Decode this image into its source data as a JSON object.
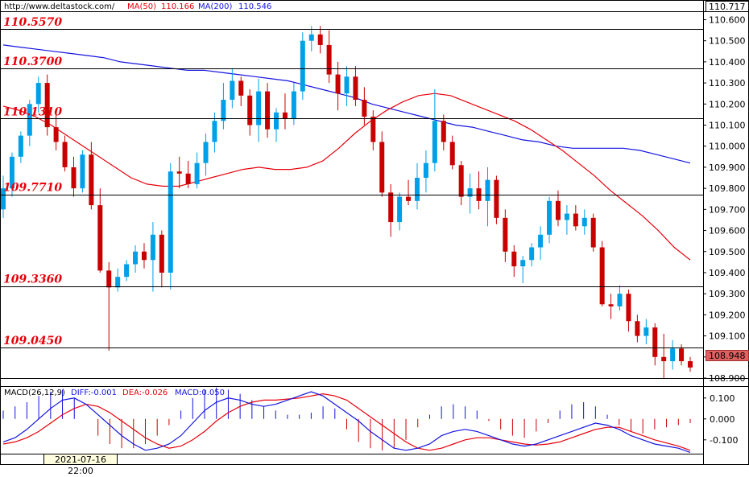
{
  "header": {
    "site": "http://www.deltastock.com/",
    "ma50_label": "MA(50)",
    "ma50_value": "110.166",
    "ma200_label": "MA(200)",
    "ma200_value": "110.546"
  },
  "macd_header": {
    "title": "MACD(26,12,9)",
    "diff": "DIFF:-0.001",
    "dea": "DEA:-0.026",
    "macd": "MACD:0.050"
  },
  "top_price": "110.717",
  "last_price": "108.948",
  "date_label": "2021-07-16 22:00",
  "colors": {
    "up": "#00a0e8",
    "down": "#c80000",
    "ma50": "#e8000b",
    "ma200": "#1414e0",
    "level_text": "#e8000b",
    "last_price_bg": "#e06060"
  },
  "chart_data": {
    "type": "candlestick",
    "ylim": [
      108.9,
      110.64
    ],
    "y_ticks": [
      "110.600",
      "110.500",
      "110.400",
      "110.300",
      "110.200",
      "110.100",
      "110.000",
      "109.900",
      "109.800",
      "109.700",
      "109.600",
      "109.500",
      "109.400",
      "109.300",
      "109.200",
      "109.100",
      "109.000",
      "108.900"
    ],
    "levels": [
      "110.5570",
      "110.3700",
      "110.1310",
      "109.7710",
      "109.3360",
      "109.0450"
    ],
    "series": [
      {
        "name": "MA(50)",
        "values": [
          110.19,
          110.17,
          110.14,
          110.1,
          110.05,
          110.0,
          109.95,
          109.9,
          109.85,
          109.82,
          109.81,
          109.81,
          109.83,
          109.85,
          109.87,
          109.89,
          109.9,
          109.89,
          109.89,
          109.9,
          109.93,
          109.99,
          110.06,
          110.12,
          110.17,
          110.21,
          110.24,
          110.25,
          110.24,
          110.21,
          110.18,
          110.15,
          110.12,
          110.08,
          110.03,
          109.98,
          109.92,
          109.86,
          109.79,
          109.73,
          109.67,
          109.6,
          109.52,
          109.46
        ]
      },
      {
        "name": "MA(200)",
        "values": [
          110.48,
          110.47,
          110.46,
          110.45,
          110.44,
          110.43,
          110.42,
          110.4,
          110.39,
          110.38,
          110.37,
          110.36,
          110.36,
          110.35,
          110.34,
          110.33,
          110.32,
          110.31,
          110.29,
          110.27,
          110.25,
          110.23,
          110.2,
          110.18,
          110.16,
          110.14,
          110.12,
          110.1,
          110.09,
          110.07,
          110.05,
          110.03,
          110.02,
          110.0,
          109.99,
          109.99,
          109.99,
          109.99,
          109.98,
          109.96,
          109.94,
          109.92
        ]
      },
      {
        "name": "candles",
        "ohlc": [
          [
            109.7,
            109.86,
            109.66,
            109.8
          ],
          [
            109.8,
            109.97,
            109.76,
            109.95
          ],
          [
            109.95,
            110.07,
            109.92,
            110.05
          ],
          [
            110.05,
            110.22,
            110.0,
            110.2
          ],
          [
            110.2,
            110.33,
            110.16,
            110.3
          ],
          [
            110.3,
            110.34,
            110.05,
            110.09
          ],
          [
            110.09,
            110.18,
            109.98,
            110.02
          ],
          [
            110.02,
            110.05,
            109.88,
            109.9
          ],
          [
            109.9,
            109.95,
            109.76,
            109.8
          ],
          [
            109.8,
            109.98,
            109.78,
            109.96
          ],
          [
            109.96,
            110.02,
            109.7,
            109.72
          ],
          [
            109.72,
            109.8,
            109.4,
            109.41
          ],
          [
            109.41,
            109.45,
            109.03,
            109.33
          ],
          [
            109.33,
            109.42,
            109.31,
            109.38
          ],
          [
            109.38,
            109.46,
            109.36,
            109.44
          ],
          [
            109.44,
            109.53,
            109.4,
            109.5
          ],
          [
            109.5,
            109.54,
            109.42,
            109.46
          ],
          [
            109.46,
            109.64,
            109.31,
            109.58
          ],
          [
            109.58,
            109.6,
            109.33,
            109.4
          ],
          [
            109.4,
            109.92,
            109.32,
            109.88
          ],
          [
            109.88,
            109.95,
            109.8,
            109.87
          ],
          [
            109.87,
            109.93,
            109.8,
            109.82
          ],
          [
            109.82,
            109.97,
            109.8,
            109.92
          ],
          [
            109.92,
            110.06,
            109.86,
            110.02
          ],
          [
            110.02,
            110.16,
            109.97,
            110.12
          ],
          [
            110.12,
            110.3,
            110.08,
            110.22
          ],
          [
            110.22,
            110.37,
            110.18,
            110.31
          ],
          [
            110.31,
            110.33,
            110.19,
            110.24
          ],
          [
            110.24,
            110.27,
            110.05,
            110.1
          ],
          [
            110.1,
            110.32,
            110.02,
            110.26
          ],
          [
            110.26,
            110.3,
            110.04,
            110.08
          ],
          [
            110.08,
            110.18,
            110.02,
            110.16
          ],
          [
            110.16,
            110.25,
            110.08,
            110.13
          ],
          [
            110.13,
            110.3,
            110.1,
            110.26
          ],
          [
            110.26,
            110.54,
            110.22,
            110.5
          ],
          [
            110.5,
            110.57,
            110.45,
            110.53
          ],
          [
            110.53,
            110.57,
            110.44,
            110.48
          ],
          [
            110.48,
            110.55,
            110.3,
            110.34
          ],
          [
            110.34,
            110.4,
            110.17,
            110.25
          ],
          [
            110.25,
            110.38,
            110.19,
            110.33
          ],
          [
            110.33,
            110.38,
            110.19,
            110.22
          ],
          [
            110.22,
            110.28,
            110.1,
            110.14
          ],
          [
            110.14,
            110.17,
            109.98,
            110.02
          ],
          [
            110.02,
            110.07,
            109.76,
            109.78
          ],
          [
            109.78,
            109.82,
            109.57,
            109.64
          ],
          [
            109.64,
            109.78,
            109.6,
            109.76
          ],
          [
            109.76,
            109.84,
            109.72,
            109.74
          ],
          [
            109.74,
            109.92,
            109.7,
            109.85
          ],
          [
            109.85,
            109.98,
            109.78,
            109.92
          ],
          [
            109.92,
            110.27,
            109.88,
            110.12
          ],
          [
            110.12,
            110.15,
            109.98,
            110.02
          ],
          [
            110.02,
            110.05,
            109.89,
            109.91
          ],
          [
            109.91,
            109.93,
            109.72,
            109.76
          ],
          [
            109.76,
            109.87,
            109.68,
            109.8
          ],
          [
            109.8,
            109.88,
            109.7,
            109.74
          ],
          [
            109.74,
            109.9,
            109.62,
            109.84
          ],
          [
            109.84,
            109.86,
            109.63,
            109.66
          ],
          [
            109.66,
            109.7,
            109.45,
            109.5
          ],
          [
            109.5,
            109.53,
            109.38,
            109.43
          ],
          [
            109.43,
            109.48,
            109.35,
            109.46
          ],
          [
            109.46,
            109.54,
            109.43,
            109.52
          ],
          [
            109.52,
            109.62,
            109.46,
            109.58
          ],
          [
            109.58,
            109.76,
            109.54,
            109.74
          ],
          [
            109.74,
            109.79,
            109.62,
            109.65
          ],
          [
            109.65,
            109.72,
            109.58,
            109.68
          ],
          [
            109.68,
            109.72,
            109.6,
            109.62
          ],
          [
            109.62,
            109.7,
            109.58,
            109.66
          ],
          [
            109.66,
            109.68,
            109.5,
            109.52
          ],
          [
            109.52,
            109.55,
            109.24,
            109.25
          ],
          [
            109.25,
            109.3,
            109.18,
            109.24
          ],
          [
            109.24,
            109.34,
            109.22,
            109.3
          ],
          [
            109.3,
            109.32,
            109.12,
            109.17
          ],
          [
            109.17,
            109.2,
            109.07,
            109.1
          ],
          [
            109.1,
            109.18,
            109.06,
            109.14
          ],
          [
            109.14,
            109.16,
            108.96,
            109.0
          ],
          [
            109.0,
            109.11,
            108.9,
            108.98
          ],
          [
            108.98,
            109.08,
            108.94,
            109.04
          ],
          [
            109.04,
            109.06,
            108.96,
            108.98
          ],
          [
            108.98,
            109.0,
            108.93,
            108.95
          ]
        ]
      }
    ],
    "macd": {
      "ylim": [
        -0.17,
        0.13
      ],
      "y_ticks": [
        "0.100",
        "0.000",
        "-0.100"
      ],
      "diff": [
        -0.11,
        -0.09,
        -0.05,
        0.0,
        0.05,
        0.09,
        0.1,
        0.07,
        0.02,
        -0.03,
        -0.08,
        -0.12,
        -0.15,
        -0.14,
        -0.12,
        -0.08,
        -0.02,
        0.04,
        0.08,
        0.1,
        0.09,
        0.07,
        0.06,
        0.07,
        0.09,
        0.11,
        0.13,
        0.11,
        0.07,
        0.03,
        -0.01,
        -0.06,
        -0.1,
        -0.14,
        -0.15,
        -0.14,
        -0.12,
        -0.08,
        -0.06,
        -0.05,
        -0.06,
        -0.08,
        -0.1,
        -0.12,
        -0.13,
        -0.12,
        -0.1,
        -0.08,
        -0.06,
        -0.04,
        -0.02,
        -0.03,
        -0.05,
        -0.08,
        -0.1,
        -0.12,
        -0.13,
        -0.14,
        -0.16
      ],
      "dea": [
        -0.12,
        -0.11,
        -0.09,
        -0.06,
        -0.02,
        0.02,
        0.05,
        0.07,
        0.06,
        0.03,
        -0.01,
        -0.05,
        -0.09,
        -0.12,
        -0.14,
        -0.13,
        -0.1,
        -0.06,
        -0.01,
        0.03,
        0.06,
        0.08,
        0.09,
        0.09,
        0.095,
        0.1,
        0.11,
        0.12,
        0.11,
        0.09,
        0.05,
        0.01,
        -0.03,
        -0.07,
        -0.11,
        -0.14,
        -0.15,
        -0.14,
        -0.12,
        -0.1,
        -0.09,
        -0.09,
        -0.1,
        -0.11,
        -0.12,
        -0.125,
        -0.12,
        -0.11,
        -0.09,
        -0.07,
        -0.05,
        -0.04,
        -0.04,
        -0.06,
        -0.08,
        -0.1,
        -0.115,
        -0.13,
        -0.15
      ],
      "hist": [
        0.04,
        0.06,
        0.08,
        0.11,
        0.13,
        0.14,
        0.1,
        0.0,
        -0.08,
        -0.12,
        -0.14,
        -0.14,
        -0.12,
        -0.08,
        -0.03,
        0.04,
        0.1,
        0.14,
        0.15,
        0.14,
        0.12,
        0.09,
        0.06,
        0.04,
        0.02,
        0.02,
        0.03,
        0.06,
        0.05,
        -0.05,
        -0.11,
        -0.14,
        -0.15,
        -0.14,
        -0.1,
        -0.04,
        0.02,
        0.06,
        0.07,
        0.06,
        0.04,
        -0.01,
        -0.05,
        -0.08,
        -0.09,
        -0.06,
        -0.02,
        0.04,
        0.07,
        0.08,
        0.06,
        0.02,
        -0.03,
        -0.06,
        -0.07,
        -0.05,
        -0.04,
        -0.03,
        -0.02
      ]
    }
  }
}
